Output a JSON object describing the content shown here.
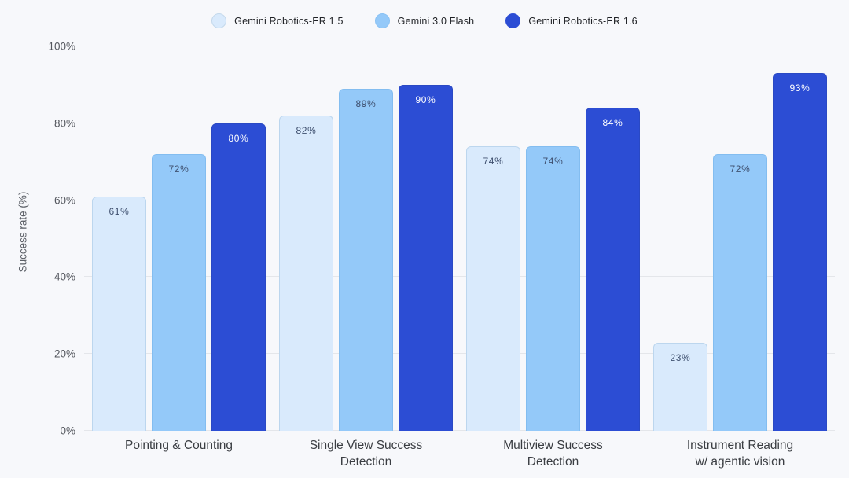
{
  "colors": {
    "background": "#f7f8fb",
    "gridline": "#e4e6ea",
    "series": [
      "#d9eafc",
      "#94c9f9",
      "#2c4dd4"
    ],
    "series_border": [
      "#bcd6ee",
      "#83bdf0",
      "#2a49c4"
    ],
    "label_on_light": "#3e4f6e",
    "label_on_dark": "#ffffff"
  },
  "legend": [
    {
      "label": "Gemini Robotics-ER 1.5",
      "color": "#d9eafc",
      "border": "#c3d8eb"
    },
    {
      "label": "Gemini 3.0 Flash",
      "color": "#94c9f9",
      "border": "#8ac2f4"
    },
    {
      "label": "Gemini Robotics-ER 1.6",
      "color": "#2c4dd4",
      "border": "#2c4dd4"
    }
  ],
  "chart_data": {
    "type": "bar",
    "title": "",
    "xlabel": "",
    "ylabel": "Success rate (%)",
    "ylim": [
      0,
      100
    ],
    "yticks": [
      "0%",
      "20%",
      "40%",
      "60%",
      "80%",
      "100%"
    ],
    "grid": true,
    "legend_position": "top",
    "value_label_suffix": "%",
    "categories": [
      "Pointing & Counting",
      "Single View Success\nDetection",
      "Multiview Success\nDetection",
      "Instrument Reading\nw/ agentic vision"
    ],
    "series": [
      {
        "name": "Gemini Robotics-ER 1.5",
        "values": [
          61,
          82,
          74,
          23
        ]
      },
      {
        "name": "Gemini 3.0 Flash",
        "values": [
          72,
          89,
          74,
          72
        ]
      },
      {
        "name": "Gemini Robotics-ER 1.6",
        "values": [
          80,
          90,
          84,
          93
        ]
      }
    ]
  }
}
